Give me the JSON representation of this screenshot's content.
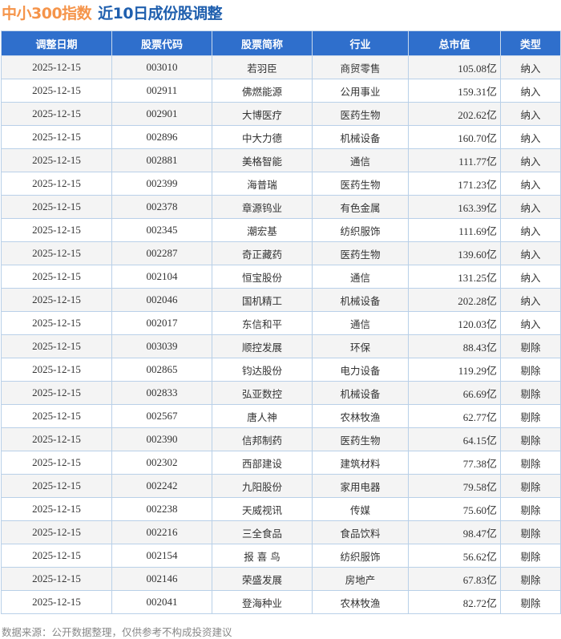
{
  "title": {
    "index": "中小300指数",
    "subtitle": "近10日成份股调整"
  },
  "columns": [
    "调整日期",
    "股票代码",
    "股票简称",
    "行业",
    "总市值",
    "类型"
  ],
  "rows": [
    [
      "2025-12-15",
      "003010",
      "若羽臣",
      "商贸零售",
      "105.08亿",
      "纳入"
    ],
    [
      "2025-12-15",
      "002911",
      "佛燃能源",
      "公用事业",
      "159.31亿",
      "纳入"
    ],
    [
      "2025-12-15",
      "002901",
      "大博医疗",
      "医药生物",
      "202.62亿",
      "纳入"
    ],
    [
      "2025-12-15",
      "002896",
      "中大力德",
      "机械设备",
      "160.70亿",
      "纳入"
    ],
    [
      "2025-12-15",
      "002881",
      "美格智能",
      "通信",
      "111.77亿",
      "纳入"
    ],
    [
      "2025-12-15",
      "002399",
      "海普瑞",
      "医药生物",
      "171.23亿",
      "纳入"
    ],
    [
      "2025-12-15",
      "002378",
      "章源钨业",
      "有色金属",
      "163.39亿",
      "纳入"
    ],
    [
      "2025-12-15",
      "002345",
      "潮宏基",
      "纺织服饰",
      "111.69亿",
      "纳入"
    ],
    [
      "2025-12-15",
      "002287",
      "奇正藏药",
      "医药生物",
      "139.60亿",
      "纳入"
    ],
    [
      "2025-12-15",
      "002104",
      "恒宝股份",
      "通信",
      "131.25亿",
      "纳入"
    ],
    [
      "2025-12-15",
      "002046",
      "国机精工",
      "机械设备",
      "202.28亿",
      "纳入"
    ],
    [
      "2025-12-15",
      "002017",
      "东信和平",
      "通信",
      "120.03亿",
      "纳入"
    ],
    [
      "2025-12-15",
      "003039",
      "顺控发展",
      "环保",
      "88.43亿",
      "剔除"
    ],
    [
      "2025-12-15",
      "002865",
      "钧达股份",
      "电力设备",
      "119.29亿",
      "剔除"
    ],
    [
      "2025-12-15",
      "002833",
      "弘亚数控",
      "机械设备",
      "66.69亿",
      "剔除"
    ],
    [
      "2025-12-15",
      "002567",
      "唐人神",
      "农林牧渔",
      "62.77亿",
      "剔除"
    ],
    [
      "2025-12-15",
      "002390",
      "信邦制药",
      "医药生物",
      "64.15亿",
      "剔除"
    ],
    [
      "2025-12-15",
      "002302",
      "西部建设",
      "建筑材料",
      "77.38亿",
      "剔除"
    ],
    [
      "2025-12-15",
      "002242",
      "九阳股份",
      "家用电器",
      "79.58亿",
      "剔除"
    ],
    [
      "2025-12-15",
      "002238",
      "天威视讯",
      "传媒",
      "75.60亿",
      "剔除"
    ],
    [
      "2025-12-15",
      "002216",
      "三全食品",
      "食品饮料",
      "98.47亿",
      "剔除"
    ],
    [
      "2025-12-15",
      "002154",
      "报 喜 鸟",
      "纺织服饰",
      "56.62亿",
      "剔除"
    ],
    [
      "2025-12-15",
      "002146",
      "荣盛发展",
      "房地产",
      "67.83亿",
      "剔除"
    ],
    [
      "2025-12-15",
      "002041",
      "登海种业",
      "农林牧渔",
      "82.72亿",
      "剔除"
    ]
  ],
  "footer": "数据来源：公开数据整理，仅供参考不构成投资建议",
  "colors": {
    "index_title": "#f5944a",
    "subtitle": "#1f5fae",
    "header_bg": "#2f6fcc"
  }
}
